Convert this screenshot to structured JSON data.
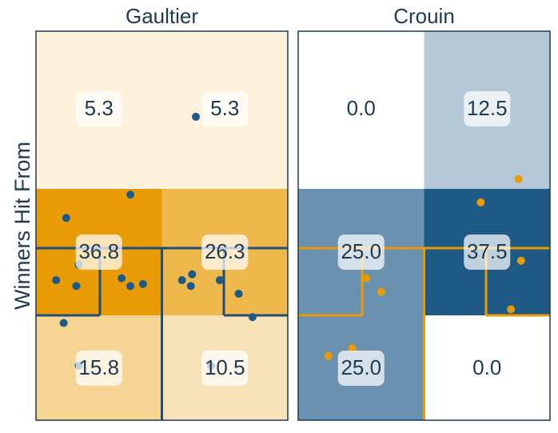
{
  "chart_data": {
    "type": "heatmap",
    "ylabel": "Winners Hit From",
    "rows": [
      "top",
      "middle",
      "bottom"
    ],
    "columns": [
      "left",
      "right"
    ],
    "panels": [
      {
        "title": "Gaultier",
        "values": [
          [
            5.3,
            5.3
          ],
          [
            36.8,
            26.3
          ],
          [
            15.8,
            10.5
          ]
        ],
        "value_labels": [
          [
            "5.3",
            "5.3"
          ],
          [
            "36.8",
            "26.3"
          ],
          [
            "15.8",
            "10.5"
          ]
        ],
        "scale_color": "#E89B05",
        "court_line_color": "#1F4E79",
        "point_color": "#1F5A87",
        "points": [
          [
            0.635,
            0.22
          ],
          [
            0.375,
            0.42
          ],
          [
            0.12,
            0.48
          ],
          [
            0.17,
            0.6
          ],
          [
            0.08,
            0.64
          ],
          [
            0.16,
            0.655
          ],
          [
            0.34,
            0.635
          ],
          [
            0.375,
            0.655
          ],
          [
            0.425,
            0.65
          ],
          [
            0.62,
            0.625
          ],
          [
            0.58,
            0.64
          ],
          [
            0.615,
            0.655
          ],
          [
            0.73,
            0.64
          ],
          [
            0.805,
            0.675
          ],
          [
            0.86,
            0.735
          ],
          [
            0.11,
            0.75
          ],
          [
            0.17,
            0.86
          ],
          [
            0.695,
            0.86
          ]
        ]
      },
      {
        "title": "Crouin",
        "values": [
          [
            0.0,
            12.5
          ],
          [
            25.0,
            37.5
          ],
          [
            25.0,
            0.0
          ]
        ],
        "value_labels": [
          [
            "0.0",
            "12.5"
          ],
          [
            "25.0",
            "37.5"
          ],
          [
            "25.0",
            "0.0"
          ]
        ],
        "scale_color": "#1F5A87",
        "court_line_color": "#E89B05",
        "point_color": "#E89B05",
        "points": [
          [
            0.875,
            0.38
          ],
          [
            0.725,
            0.44
          ],
          [
            0.885,
            0.59
          ],
          [
            0.27,
            0.635
          ],
          [
            0.33,
            0.67
          ],
          [
            0.845,
            0.715
          ],
          [
            0.12,
            0.835
          ],
          [
            0.215,
            0.815
          ]
        ]
      }
    ],
    "colors": {
      "frame": "#1E3A4F",
      "text": "#1E3A4F",
      "label_box": "#ffffff"
    }
  }
}
